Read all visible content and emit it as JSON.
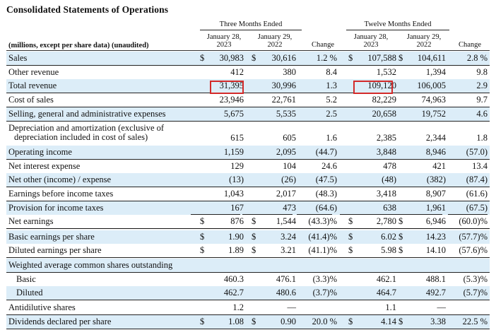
{
  "title": "Consolidated Statements of Operations",
  "header": {
    "units_label": "(millions, except per share data) (unaudited)",
    "group_three": "Three Months Ended",
    "group_twelve": "Twelve Months Ended",
    "col1": [
      "January 28,",
      "2023"
    ],
    "col2": [
      "January 29,",
      "2022"
    ],
    "col3": "Change",
    "col4": [
      "January 28,",
      "2023"
    ],
    "col5": [
      "January 29,",
      "2022"
    ],
    "col6": "Change"
  },
  "rows": [
    {
      "label": [
        "Sales"
      ],
      "v": [
        "30,983",
        "30,616",
        "1.2 %",
        "107,588",
        "104,611",
        "2.8 %"
      ],
      "dollar": true
    },
    {
      "label": [
        "Other revenue"
      ],
      "v": [
        "412",
        "380",
        "8.4",
        "1,532",
        "1,394",
        "9.8"
      ]
    },
    {
      "label": [
        "Total revenue"
      ],
      "v": [
        "31,395",
        "30,996",
        "1.3",
        "109,120",
        "106,005",
        "2.9"
      ]
    },
    {
      "label": [
        "Cost of sales"
      ],
      "v": [
        "23,946",
        "22,761",
        "5.2",
        "82,229",
        "74,963",
        "9.7"
      ]
    },
    {
      "label": [
        "Selling, general and administrative expenses"
      ],
      "v": [
        "5,675",
        "5,535",
        "2.5",
        "20,658",
        "19,752",
        "4.6"
      ]
    },
    {
      "label": [
        "Depreciation and amortization (exclusive of",
        "depreciation included in cost of sales)"
      ],
      "v": [
        "615",
        "605",
        "1.6",
        "2,385",
        "2,344",
        "1.8"
      ]
    },
    {
      "label": [
        "Operating income"
      ],
      "v": [
        "1,159",
        "2,095",
        "(44.7)",
        "3,848",
        "8,946",
        "(57.0)"
      ]
    },
    {
      "label": [
        "Net interest expense"
      ],
      "v": [
        "129",
        "104",
        "24.6",
        "478",
        "421",
        "13.4"
      ]
    },
    {
      "label": [
        "Net other (income) / expense"
      ],
      "v": [
        "(13)",
        "(26)",
        "(47.5)",
        "(48)",
        "(382)",
        "(87.4)"
      ]
    },
    {
      "label": [
        "Earnings before income taxes"
      ],
      "v": [
        "1,043",
        "2,017",
        "(48.3)",
        "3,418",
        "8,907",
        "(61.6)"
      ]
    },
    {
      "label": [
        "Provision for income taxes"
      ],
      "v": [
        "167",
        "473",
        "(64.6)",
        "638",
        "1,961",
        "(67.5)"
      ]
    },
    {
      "label": [
        "Net earnings"
      ],
      "v": [
        "876",
        "1,544",
        "(43.3)%",
        "2,780",
        "6,946",
        "(60.0)%"
      ],
      "dollar": true
    },
    {
      "label": [
        "Basic earnings per share"
      ],
      "v": [
        "1.90",
        "3.24",
        "(41.4)%",
        "6.02",
        "14.23",
        "(57.7)%"
      ],
      "dollar": true
    },
    {
      "label": [
        "Diluted earnings per share"
      ],
      "v": [
        "1.89",
        "3.21",
        "(41.1)%",
        "5.98",
        "14.10",
        "(57.6)%"
      ],
      "dollar": true
    },
    {
      "label": [
        "Weighted average common shares outstanding"
      ],
      "v": [
        "",
        "",
        "",
        "",
        "",
        ""
      ]
    },
    {
      "label": [
        "Basic"
      ],
      "v": [
        "460.3",
        "476.1",
        "(3.3)%",
        "462.1",
        "488.1",
        "(5.3)%"
      ],
      "indent": true
    },
    {
      "label": [
        "Diluted"
      ],
      "v": [
        "462.7",
        "480.6",
        "(3.7)%",
        "464.7",
        "492.7",
        "(5.7)%"
      ],
      "indent": true
    },
    {
      "label": [
        "Antidilutive shares"
      ],
      "v": [
        "1.2",
        "—",
        "",
        "1.1",
        "—",
        ""
      ]
    },
    {
      "label": [
        "Dividends declared per share"
      ],
      "v": [
        "1.08",
        "0.90",
        "20.0 %",
        "4.14",
        "3.38",
        "22.5 %"
      ],
      "dollar": true
    }
  ],
  "dollar_sign": "$",
  "highlight_color": "#d32a2a",
  "shade_color": "#dcedf8"
}
